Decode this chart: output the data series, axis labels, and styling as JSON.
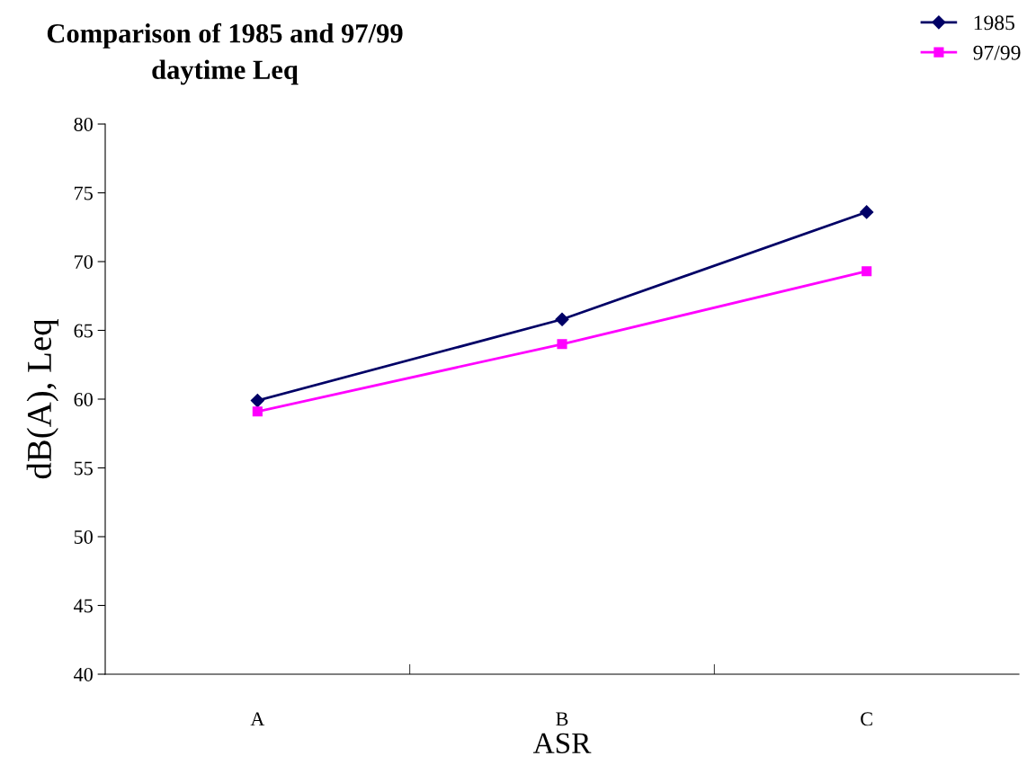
{
  "chart_data": {
    "type": "line",
    "title": "Comparison of 1985 and 97/99\ndaytime Leq",
    "xlabel": "ASR",
    "ylabel": "dB(A), Leq",
    "categories": [
      "A",
      "B",
      "C"
    ],
    "series": [
      {
        "name": "1985",
        "color": "#000066",
        "marker": "diamond",
        "values": [
          59.9,
          65.8,
          73.6
        ]
      },
      {
        "name": "97/99",
        "color": "#ff00ff",
        "marker": "square",
        "values": [
          59.1,
          64.0,
          69.3
        ]
      }
    ],
    "ylim": [
      40,
      80
    ],
    "yticks": [
      40,
      45,
      50,
      55,
      60,
      65,
      70,
      75,
      80
    ],
    "grid": false,
    "legend": "top right",
    "line_style": "solid"
  }
}
